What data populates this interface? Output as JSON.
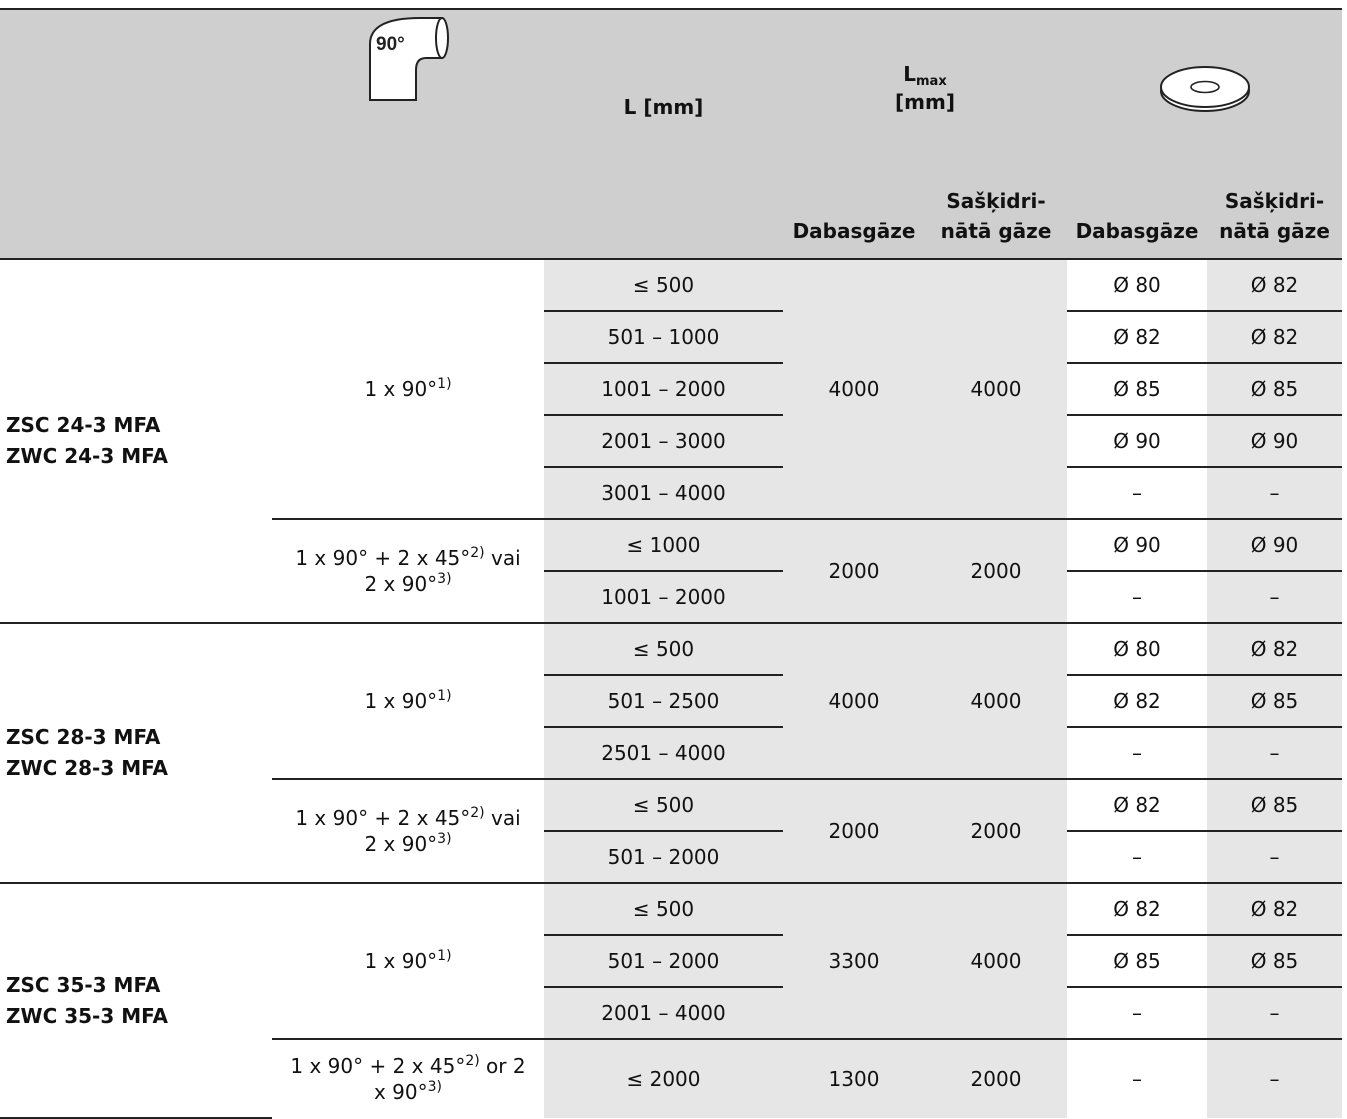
{
  "header": {
    "elbow_label": "90°",
    "l_label": "L [mm]",
    "lmax_main": "L",
    "lmax_sub": "max",
    "lmax_unit": "[mm]",
    "col_natural": "Dabasgāze",
    "col_liquefied_1": "Sašķidri-",
    "col_liquefied_2": "nātā gāze",
    "col_natural_2": "Dabasgāze",
    "col_liquefied_3": "Sašķidri-",
    "col_liquefied_4": "nātā gāze"
  },
  "groups": [
    {
      "model_1": "ZSC 24-3 MFA",
      "model_2": "ZWC 24-3 MFA",
      "subs": [
        {
          "bend": "1 x 90°",
          "bend_sup": "1)",
          "bend_2": "",
          "bend_2_sup": "",
          "lmax_natural": "4000",
          "lmax_liquefied": "4000",
          "rows": [
            {
              "length": "≤ 500",
              "d_natural": "Ø 80",
              "d_liquefied": "Ø 82"
            },
            {
              "length": "501 – 1000",
              "d_natural": "Ø 82",
              "d_liquefied": "Ø 82"
            },
            {
              "length": "1001 – 2000",
              "d_natural": "Ø 85",
              "d_liquefied": "Ø 85"
            },
            {
              "length": "2001 – 3000",
              "d_natural": "Ø 90",
              "d_liquefied": "Ø 90"
            },
            {
              "length": "3001 – 4000",
              "d_natural": "–",
              "d_liquefied": "–"
            }
          ]
        },
        {
          "bend": "1 x 90° + 2 x 45°",
          "bend_sup": "2)",
          "bend_mid": " vai",
          "bend_2": "2 x 90°",
          "bend_2_sup": "3)",
          "lmax_natural": "2000",
          "lmax_liquefied": "2000",
          "rows": [
            {
              "length": "≤ 1000",
              "d_natural": "Ø 90",
              "d_liquefied": "Ø 90"
            },
            {
              "length": "1001 – 2000",
              "d_natural": "–",
              "d_liquefied": "–"
            }
          ]
        }
      ]
    },
    {
      "model_1": "ZSC 28-3 MFA",
      "model_2": "ZWC 28-3 MFA",
      "subs": [
        {
          "bend": "1 x 90°",
          "bend_sup": "1)",
          "lmax_natural": "4000",
          "lmax_liquefied": "4000",
          "rows": [
            {
              "length": "≤ 500",
              "d_natural": "Ø 80",
              "d_liquefied": "Ø 82"
            },
            {
              "length": "501 – 2500",
              "d_natural": "Ø 82",
              "d_liquefied": "Ø 85"
            },
            {
              "length": "2501 – 4000",
              "d_natural": "–",
              "d_liquefied": "–"
            }
          ]
        },
        {
          "bend": "1 x 90° + 2 x 45°",
          "bend_sup": "2)",
          "bend_mid": " vai",
          "bend_2": "2 x 90°",
          "bend_2_sup": "3)",
          "lmax_natural": "2000",
          "lmax_liquefied": "2000",
          "rows": [
            {
              "length": "≤ 500",
              "d_natural": "Ø 82",
              "d_liquefied": "Ø 85"
            },
            {
              "length": "501 – 2000",
              "d_natural": "–",
              "d_liquefied": "–"
            }
          ]
        }
      ]
    },
    {
      "model_1": "ZSC 35-3 MFA",
      "model_2": "ZWC 35-3 MFA",
      "subs": [
        {
          "bend": "1 x 90°",
          "bend_sup": "1)",
          "lmax_natural": "3300",
          "lmax_liquefied": "4000",
          "rows": [
            {
              "length": "≤ 500",
              "d_natural": "Ø 82",
              "d_liquefied": "Ø 82"
            },
            {
              "length": "501 – 2000",
              "d_natural": "Ø 85",
              "d_liquefied": "Ø 85"
            },
            {
              "length": "2001 – 4000",
              "d_natural": "–",
              "d_liquefied": "–"
            }
          ]
        },
        {
          "bend": "1 x 90° + 2 x 45°",
          "bend_sup": "2)",
          "bend_mid": " or 2",
          "bend_2": "x 90°",
          "bend_2_sup": "3)",
          "lmax_natural": "1300",
          "lmax_liquefied": "2000",
          "rows": [
            {
              "length": "≤ 2000",
              "d_natural": "–",
              "d_liquefied": "–"
            }
          ]
        }
      ]
    }
  ],
  "icons": {
    "elbow": "elbow-pipe-icon",
    "washer": "flue-restrictor-ring-icon"
  }
}
